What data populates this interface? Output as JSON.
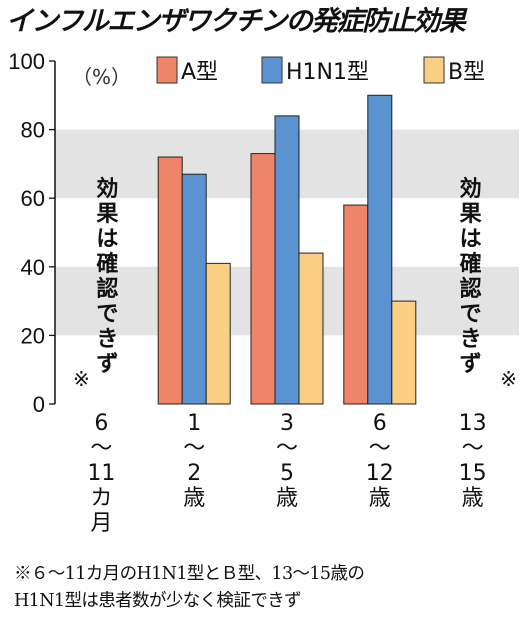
{
  "title": "インフルエンザワクチンの発症防止効果",
  "unit": "（%）",
  "chart_data": {
    "type": "bar",
    "categories": [
      "6〜11カ月",
      "1〜2歳",
      "3〜5歳",
      "6〜12歳",
      "13〜15歳"
    ],
    "category_labels": [
      [
        "6",
        "〜",
        "11",
        "カ",
        "月"
      ],
      [
        "1",
        "〜",
        "2",
        "歳"
      ],
      [
        "3",
        "〜",
        "5",
        "歳"
      ],
      [
        "6",
        "〜",
        "12",
        "歳"
      ],
      [
        "13",
        "〜",
        "15",
        "歳"
      ]
    ],
    "series": [
      {
        "name": "A型",
        "color": "#f08466",
        "values": [
          null,
          72,
          73,
          58,
          null
        ]
      },
      {
        "name": "H1N1型",
        "color": "#5b92d0",
        "values": [
          null,
          67,
          84,
          90,
          null
        ]
      },
      {
        "name": "B型",
        "color": "#f8cf83",
        "values": [
          null,
          41,
          44,
          30,
          null
        ]
      }
    ],
    "ylim": [
      0,
      100
    ],
    "yticks": [
      0,
      20,
      40,
      60,
      80,
      100
    ],
    "grid_bands": true,
    "legend_position": "top-right",
    "annotations": {
      "unconfirmed_text": "効果は確認できず",
      "unconfirmed_mark": "※",
      "unconfirmed_categories": [
        "6〜11カ月",
        "13〜15歳"
      ]
    }
  },
  "footnote": {
    "line1": "※６〜11カ月のH1N1型とＢ型、13〜15歳の",
    "line2": "H1N1型は患者数が少なく検証できず"
  }
}
